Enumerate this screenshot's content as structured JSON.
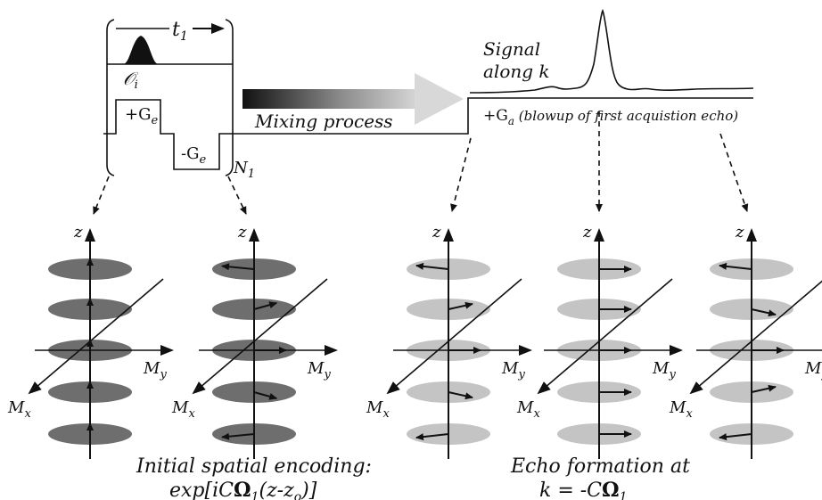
{
  "pulse_sequence": {
    "t1_label": "t",
    "t1_subscript": "1",
    "pulse_label": "𝒪",
    "pulse_subscript": "i",
    "gradient_pos_label": "+G",
    "gradient_pos_subscript": "e",
    "gradient_neg_label": "-G",
    "gradient_neg_subscript": "e",
    "loop_label": "N",
    "loop_subscript": "1"
  },
  "mixing": {
    "label": "Mixing process"
  },
  "acquisition": {
    "signal_line1": "Signal",
    "signal_line2": "along k",
    "gradient_label": "+G",
    "gradient_subscript": "a",
    "gradient_note": " (blowup of first acquistion echo)"
  },
  "axes": {
    "z": "z",
    "my": "M",
    "my_sub": "y",
    "mx": "M",
    "mx_sub": "x"
  },
  "captions": {
    "left_line1": "Initial spatial encoding:",
    "left_line2_pre": "exp[iC",
    "left_line2_omega": "Ω",
    "left_line2_sub": "1",
    "left_line2_post": "(z-z",
    "left_line2_sub2": "o",
    "left_line2_end": ")]",
    "right_line1": "Echo formation at",
    "right_line2_pre": "k = -C",
    "right_line2_omega": "Ω",
    "right_line2_sub": "1"
  },
  "colors": {
    "disc_dark": "#6e6e6e",
    "disc_light": "#c4c4c4",
    "ink": "#111111"
  },
  "magnetization_columns": [
    {
      "name": "uniform",
      "shade": "dark",
      "vectors": [
        [
          0,
          1
        ],
        [
          0,
          1
        ],
        [
          0,
          1
        ],
        [
          0,
          1
        ],
        [
          0,
          1
        ]
      ]
    },
    {
      "name": "helix",
      "shade": "dark",
      "vectors": [
        [
          -1,
          0.35
        ],
        [
          0.7,
          0.7
        ],
        [
          1,
          0
        ],
        [
          0.7,
          -0.7
        ],
        [
          -1,
          -0.35
        ]
      ]
    },
    {
      "name": "echo-left",
      "shade": "light",
      "vectors": [
        [
          -1,
          0.4
        ],
        [
          0.75,
          0.6
        ],
        [
          1,
          0
        ],
        [
          0.75,
          -0.6
        ],
        [
          -1,
          -0.4
        ]
      ]
    },
    {
      "name": "echo-center",
      "shade": "light",
      "vectors": [
        [
          1,
          0
        ],
        [
          1,
          0
        ],
        [
          1,
          0
        ],
        [
          1,
          0
        ],
        [
          1,
          0
        ]
      ]
    },
    {
      "name": "echo-right",
      "shade": "light",
      "vectors": [
        [
          -1,
          0.4
        ],
        [
          0.75,
          -0.6
        ],
        [
          1,
          0
        ],
        [
          0.75,
          0.6
        ],
        [
          -1,
          -0.4
        ]
      ]
    }
  ]
}
